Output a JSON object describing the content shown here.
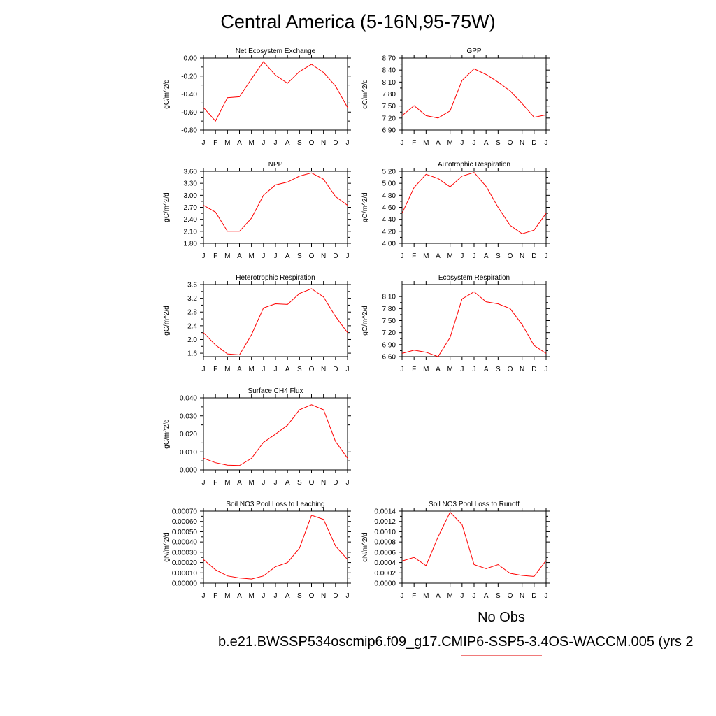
{
  "page": {
    "title": "Central America (5-16N,95-75W)",
    "legend": {
      "obs_label": "No Obs",
      "obs_color": "#8d8df5",
      "case_label": "b.e21.BWSSP534oscmip6.f09_g17.CMIP6-SSP5-3.4OS-WACCM.005 (yrs 2",
      "case_color": "#f07a7a"
    }
  },
  "chart_data": [
    {
      "type": "line",
      "title": "Net Ecosystem Exchange",
      "ylabel": "gC/m^2/d",
      "x": [
        "J",
        "F",
        "M",
        "A",
        "M",
        "J",
        "J",
        "A",
        "S",
        "O",
        "N",
        "D",
        "J"
      ],
      "ylim": [
        -0.8,
        0.0
      ],
      "yticks": [
        "0.00",
        "-0.20",
        "-0.40",
        "-0.60",
        "-0.80"
      ],
      "ytick_values": [
        0.0,
        -0.2,
        -0.4,
        -0.6,
        -0.8
      ],
      "series": [
        {
          "color": "#ff0000",
          "values": [
            -0.55,
            -0.7,
            -0.44,
            -0.43,
            -0.23,
            -0.04,
            -0.19,
            -0.28,
            -0.15,
            -0.07,
            -0.16,
            -0.31,
            -0.55
          ]
        }
      ]
    },
    {
      "type": "line",
      "title": "GPP",
      "ylabel": "gC/m^2/d",
      "x": [
        "J",
        "F",
        "M",
        "A",
        "M",
        "J",
        "J",
        "A",
        "S",
        "O",
        "N",
        "D",
        "J"
      ],
      "ylim": [
        6.9,
        8.7
      ],
      "yticks": [
        "8.70",
        "8.40",
        "8.10",
        "7.80",
        "7.50",
        "7.20",
        "6.90"
      ],
      "ytick_values": [
        8.7,
        8.4,
        8.1,
        7.8,
        7.5,
        7.2,
        6.9
      ],
      "series": [
        {
          "color": "#ff0000",
          "values": [
            7.26,
            7.51,
            7.26,
            7.2,
            7.38,
            8.14,
            8.43,
            8.29,
            8.1,
            7.88,
            7.56,
            7.22,
            7.28
          ]
        }
      ]
    },
    {
      "type": "line",
      "title": "NPP",
      "ylabel": "gC/m^2/d",
      "x": [
        "J",
        "F",
        "M",
        "A",
        "M",
        "J",
        "J",
        "A",
        "S",
        "O",
        "N",
        "D",
        "J"
      ],
      "ylim": [
        1.8,
        3.6
      ],
      "yticks": [
        "3.60",
        "3.30",
        "3.00",
        "2.70",
        "2.40",
        "2.10",
        "1.80"
      ],
      "ytick_values": [
        3.6,
        3.3,
        3.0,
        2.7,
        2.4,
        2.1,
        1.8
      ],
      "series": [
        {
          "color": "#ff0000",
          "values": [
            2.75,
            2.58,
            2.1,
            2.1,
            2.43,
            3.0,
            3.26,
            3.33,
            3.48,
            3.56,
            3.4,
            2.97,
            2.75
          ]
        }
      ]
    },
    {
      "type": "line",
      "title": "Autotrophic Respiration",
      "ylabel": "gC/m^2/d",
      "x": [
        "J",
        "F",
        "M",
        "A",
        "M",
        "J",
        "J",
        "A",
        "S",
        "O",
        "N",
        "D",
        "J"
      ],
      "ylim": [
        4.0,
        5.2
      ],
      "yticks": [
        "5.20",
        "5.00",
        "4.80",
        "4.60",
        "4.40",
        "4.20",
        "4.00"
      ],
      "ytick_values": [
        5.2,
        5.0,
        4.8,
        4.6,
        4.4,
        4.2,
        4.0
      ],
      "series": [
        {
          "color": "#ff0000",
          "values": [
            4.5,
            4.93,
            5.15,
            5.08,
            4.94,
            5.12,
            5.18,
            4.95,
            4.6,
            4.3,
            4.16,
            4.22,
            4.5
          ]
        }
      ]
    },
    {
      "type": "line",
      "title": "Heterotrophic Respiration",
      "ylabel": "gC/m^2/d",
      "x": [
        "J",
        "F",
        "M",
        "A",
        "M",
        "J",
        "J",
        "A",
        "S",
        "O",
        "N",
        "D",
        "J"
      ],
      "ylim": [
        1.5,
        3.6
      ],
      "yticks": [
        "3.6",
        "3.2",
        "2.8",
        "2.4",
        "2.0",
        "1.6"
      ],
      "ytick_values": [
        3.6,
        3.2,
        2.8,
        2.4,
        2.0,
        1.6
      ],
      "series": [
        {
          "color": "#ff0000",
          "values": [
            2.2,
            1.84,
            1.58,
            1.55,
            2.14,
            2.92,
            3.04,
            3.02,
            3.34,
            3.48,
            3.24,
            2.67,
            2.2
          ]
        }
      ]
    },
    {
      "type": "line",
      "title": "Ecosystem Respiration",
      "ylabel": "gC/m^2/d",
      "x": [
        "J",
        "F",
        "M",
        "A",
        "M",
        "J",
        "J",
        "A",
        "S",
        "O",
        "N",
        "D",
        "J"
      ],
      "ylim": [
        6.6,
        8.4
      ],
      "yticks": [
        "8.10",
        "7.80",
        "7.50",
        "7.20",
        "6.90",
        "6.60"
      ],
      "ytick_values": [
        8.1,
        7.8,
        7.5,
        7.2,
        6.9,
        6.6
      ],
      "series": [
        {
          "color": "#ff0000",
          "values": [
            6.68,
            6.76,
            6.71,
            6.6,
            7.08,
            8.04,
            8.22,
            7.97,
            7.92,
            7.8,
            7.4,
            6.88,
            6.68
          ]
        }
      ]
    },
    {
      "type": "line",
      "title": "Surface CH4 Flux",
      "ylabel": "gC/m^2/d",
      "x": [
        "J",
        "F",
        "M",
        "A",
        "M",
        "J",
        "J",
        "A",
        "S",
        "O",
        "N",
        "D",
        "J"
      ],
      "ylim": [
        0.0,
        0.04
      ],
      "yticks": [
        "0.040",
        "0.030",
        "0.020",
        "0.010",
        "0.000"
      ],
      "ytick_values": [
        0.04,
        0.03,
        0.02,
        0.01,
        0.0
      ],
      "series": [
        {
          "color": "#ff0000",
          "values": [
            0.0065,
            0.004,
            0.0026,
            0.0024,
            0.0064,
            0.0153,
            0.0199,
            0.0248,
            0.0334,
            0.0362,
            0.0334,
            0.0158,
            0.0065
          ]
        }
      ]
    },
    {
      "type": "line",
      "title": "Soil NO3 Pool Loss to Leaching",
      "ylabel": "gN/m^2/d",
      "x": [
        "J",
        "F",
        "M",
        "A",
        "M",
        "J",
        "J",
        "A",
        "S",
        "O",
        "N",
        "D",
        "J"
      ],
      "ylim": [
        0.0,
        0.0007
      ],
      "yticks": [
        "0.00070",
        "0.00060",
        "0.00050",
        "0.00040",
        "0.00030",
        "0.00020",
        "0.00010",
        "0.00000"
      ],
      "ytick_values": [
        0.0007,
        0.0006,
        0.0005,
        0.0004,
        0.0003,
        0.0002,
        0.0001,
        0.0
      ],
      "series": [
        {
          "color": "#ff0000",
          "values": [
            0.00023,
            0.00013,
            7e-05,
            5e-05,
            4e-05,
            7e-05,
            0.00016,
            0.0002,
            0.00034,
            0.00066,
            0.00062,
            0.00036,
            0.00023
          ]
        }
      ]
    },
    {
      "type": "line",
      "title": "Soil NO3 Pool Loss to Runoff",
      "ylabel": "gN/m^2/d",
      "x": [
        "J",
        "F",
        "M",
        "A",
        "M",
        "J",
        "J",
        "A",
        "S",
        "O",
        "N",
        "D",
        "J"
      ],
      "ylim": [
        0.0,
        0.0014
      ],
      "yticks": [
        "0.0014",
        "0.0012",
        "0.0010",
        "0.0008",
        "0.0006",
        "0.0004",
        "0.0002",
        "0.0000"
      ],
      "ytick_values": [
        0.0014,
        0.0012,
        0.001,
        0.0008,
        0.0006,
        0.0004,
        0.0002,
        0.0
      ],
      "series": [
        {
          "color": "#ff0000",
          "values": [
            0.00043,
            0.0005,
            0.00034,
            0.0009,
            0.00138,
            0.00114,
            0.00036,
            0.00028,
            0.00036,
            0.00019,
            0.00015,
            0.00013,
            0.00044
          ]
        }
      ]
    }
  ]
}
